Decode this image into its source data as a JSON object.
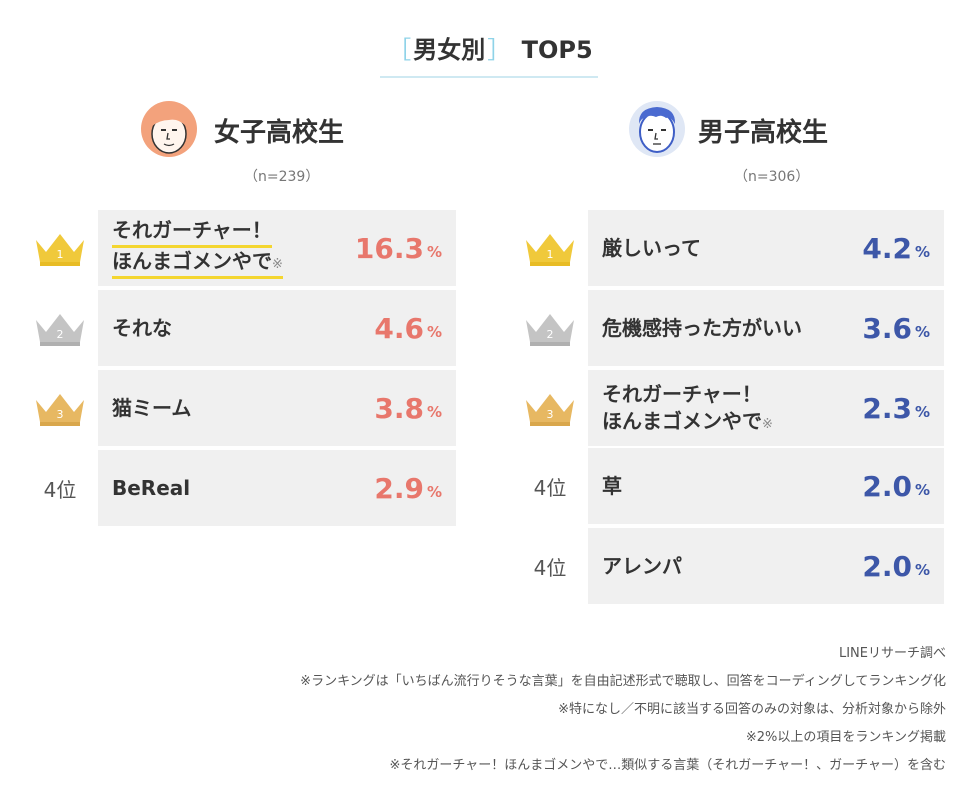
{
  "title": {
    "bracket_open": "［",
    "main": "男女別",
    "bracket_close": "］",
    "suffix": " TOP5"
  },
  "colors": {
    "accent_red": "#e8776c",
    "accent_blue": "#3d57a8",
    "gold": "#f0c93b",
    "silver": "#c4c4c4",
    "bronze": "#e7b862",
    "highlight": "#f4d630"
  },
  "girls": {
    "name": "女子高校生",
    "n": "（n=239）",
    "face_icon": "girl-face-icon",
    "rows": [
      {
        "rank_icon": "gold-crown-icon",
        "rank_num": "1",
        "label_line1": "それガーチャー！",
        "label_line2": "ほんまゴメンやで",
        "mark": "※",
        "value": "16.3",
        "unit": "%"
      },
      {
        "rank_icon": "silver-crown-icon",
        "rank_num": "2",
        "label": "それな",
        "value": "4.6",
        "unit": "%"
      },
      {
        "rank_icon": "bronze-crown-icon",
        "rank_num": "3",
        "label": "猫ミーム",
        "value": "3.8",
        "unit": "%"
      },
      {
        "rank_text": "4位",
        "label": "BeReal",
        "value": "2.9",
        "unit": "%"
      }
    ]
  },
  "boys": {
    "name": "男子高校生",
    "n": "（n=306）",
    "face_icon": "boy-face-icon",
    "rows": [
      {
        "rank_icon": "gold-crown-icon",
        "rank_num": "1",
        "label": "厳しいって",
        "value": "4.2",
        "unit": "%"
      },
      {
        "rank_icon": "silver-crown-icon",
        "rank_num": "2",
        "label": "危機感持った方がいい",
        "value": "3.6",
        "unit": "%"
      },
      {
        "rank_icon": "bronze-crown-icon",
        "rank_num": "3",
        "label_line1": "それガーチャー！",
        "label_line2": "ほんまゴメンやで",
        "mark": "※",
        "value": "2.3",
        "unit": "%"
      },
      {
        "rank_text": "4位",
        "label": "草",
        "value": "2.0",
        "unit": "%"
      },
      {
        "rank_text": "4位",
        "label": "アレンパ",
        "value": "2.0",
        "unit": "%"
      }
    ]
  },
  "notes": [
    "LINEリサーチ調べ",
    "※ランキングは「いちばん流行りそうな言葉」を自由記述形式で聴取し、回答をコーディングしてランキング化",
    "※特になし／不明に該当する回答のみの対象は、分析対象から除外",
    "※2%以上の項目をランキング掲載",
    "※それガーチャー！ほんまゴメンやで…類似する言葉（それガーチャー！、ガーチャー）を含む"
  ]
}
